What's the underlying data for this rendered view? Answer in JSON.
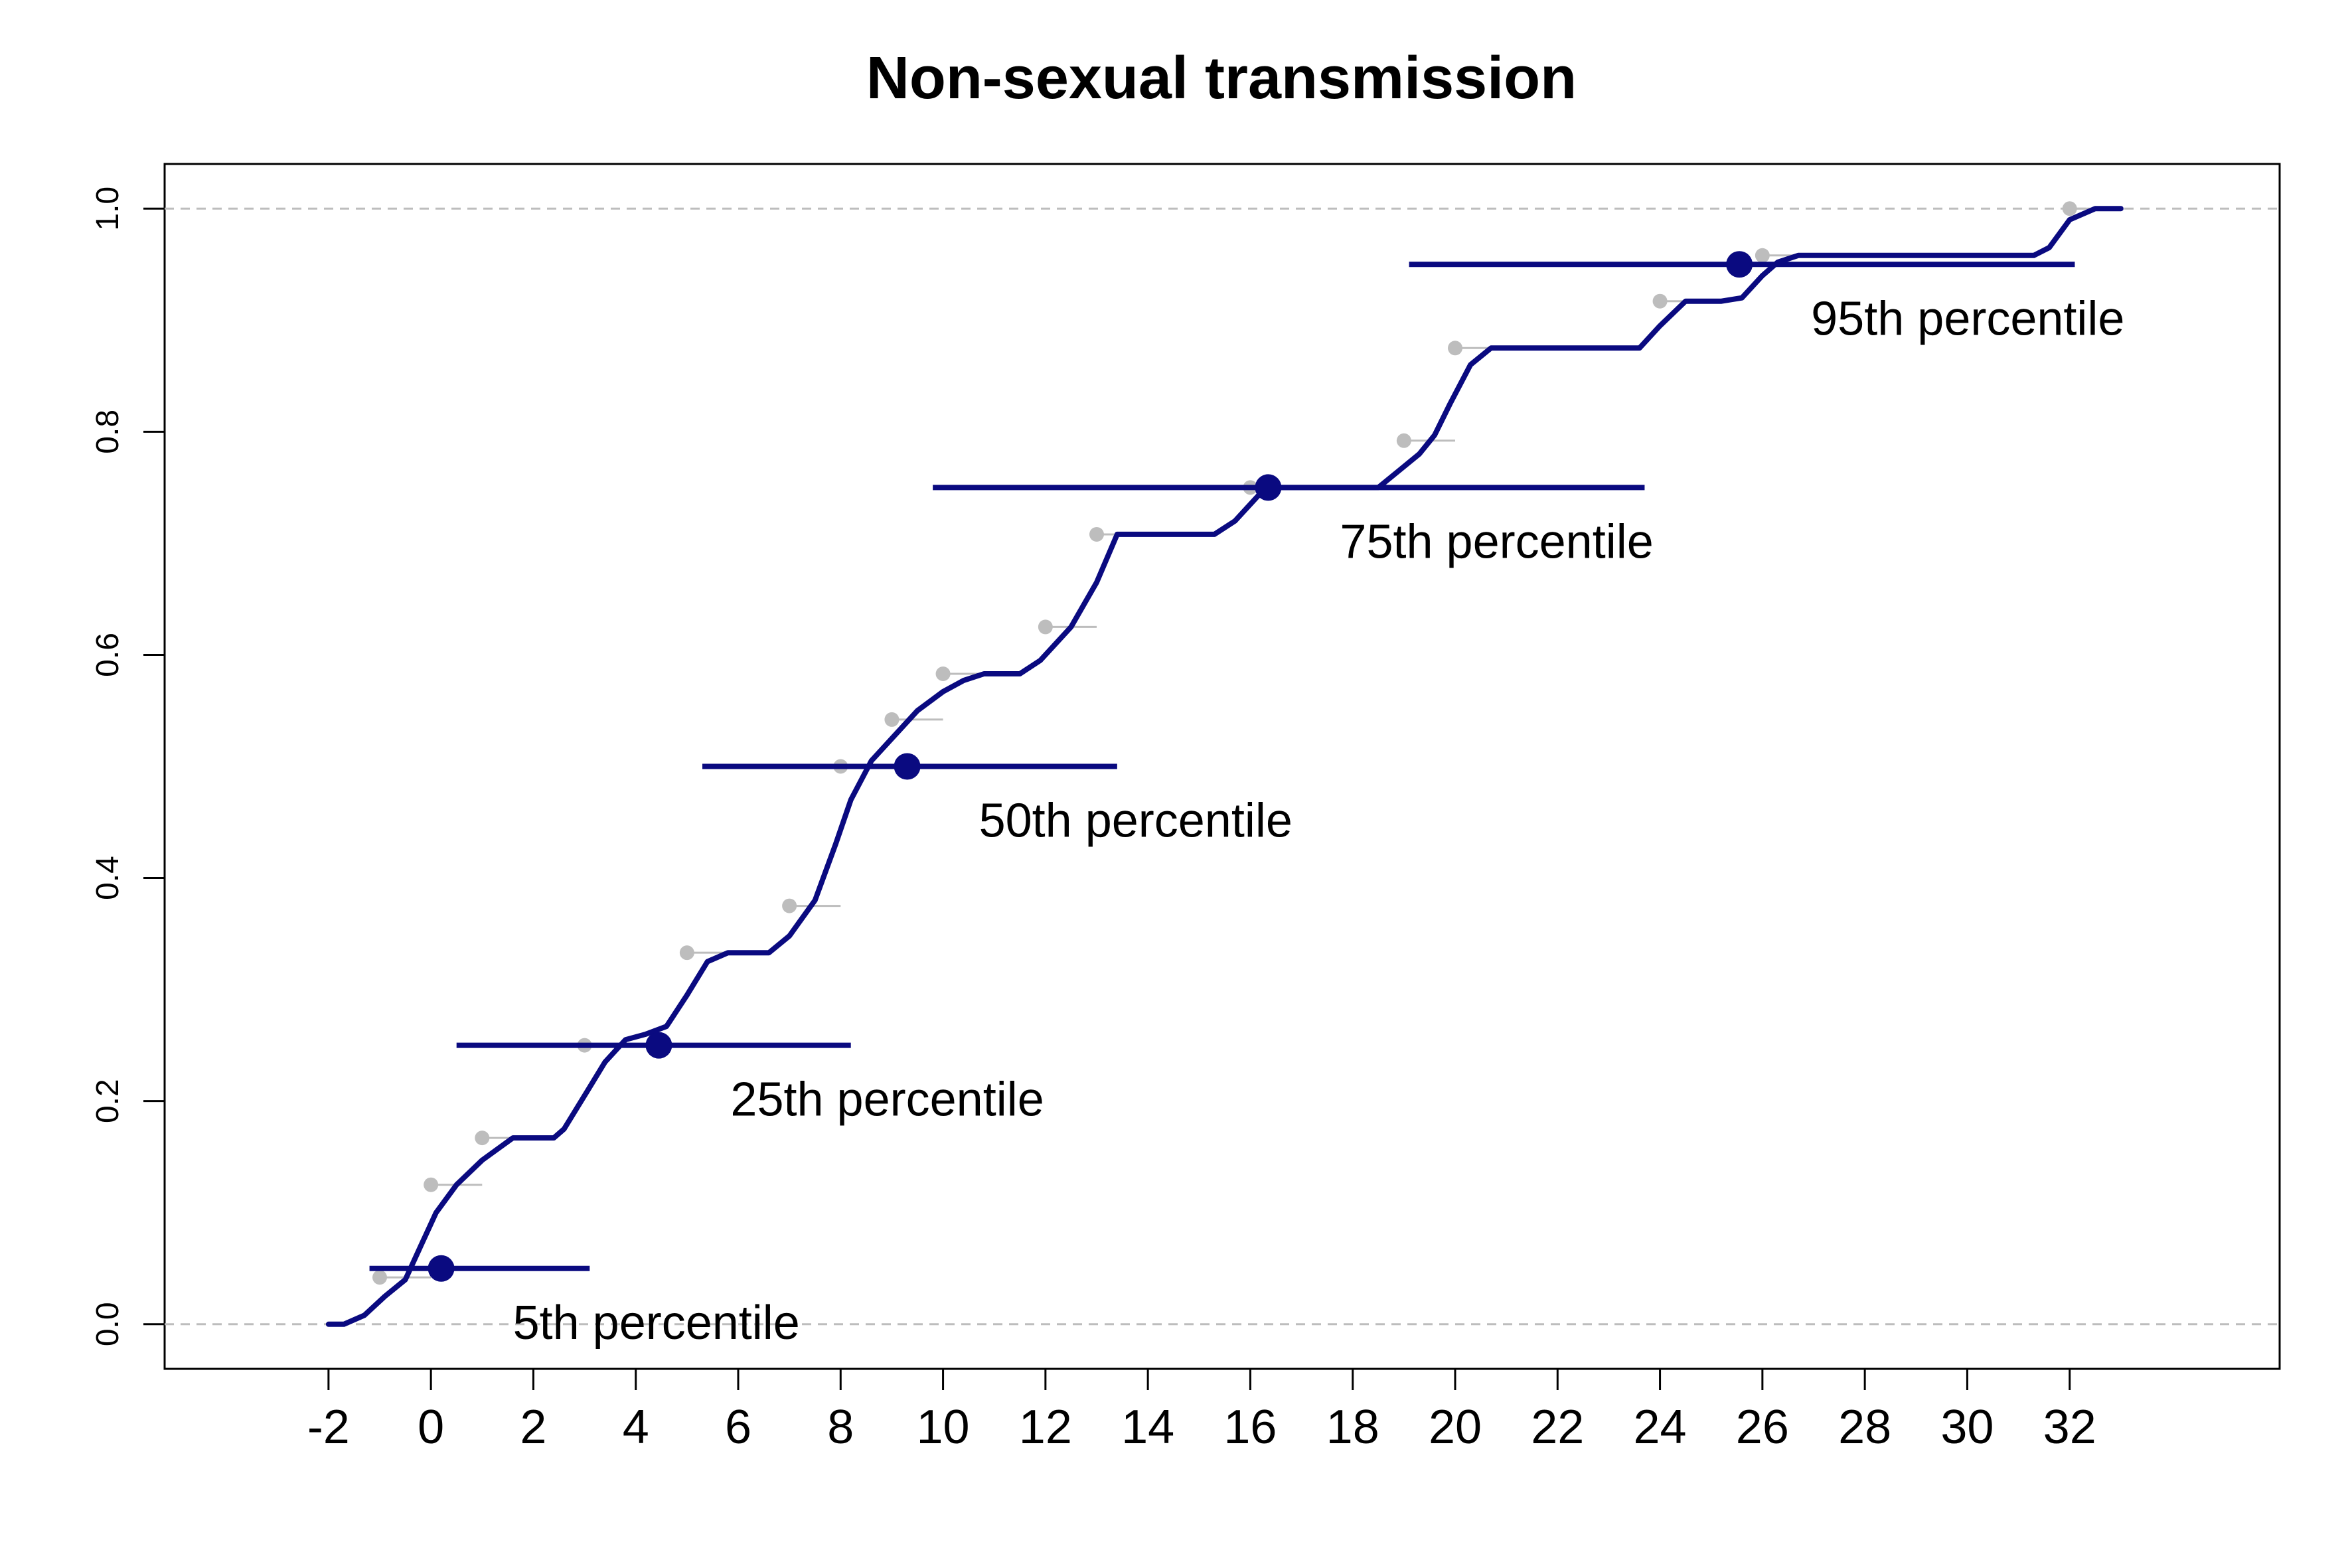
{
  "chart_data": {
    "type": "line",
    "title": "Non-sexual transmission",
    "xlabel": "",
    "ylabel": "",
    "xlim": [
      -5.2,
      36.1
    ],
    "ylim": [
      -0.04,
      1.04
    ],
    "x_ticks": [
      -2,
      0,
      2,
      4,
      6,
      8,
      10,
      12,
      14,
      16,
      18,
      20,
      22,
      24,
      26,
      28,
      30,
      32
    ],
    "x_tick_labels": [
      "-2",
      "0",
      "2",
      "4",
      "6",
      "8",
      "10",
      "12",
      "14",
      "16",
      "18",
      "20",
      "22",
      "24",
      "26",
      "28",
      "30",
      "32"
    ],
    "y_ticks": [
      0.0,
      0.2,
      0.4,
      0.6,
      0.8,
      1.0
    ],
    "y_tick_labels": [
      "0.0",
      "0.2",
      "0.4",
      "0.6",
      "0.8",
      "1.0"
    ],
    "reference_lines_y": [
      0.0,
      1.0
    ],
    "colors": {
      "curve": "#0a0a80",
      "percentile": "#0a0a80",
      "empirical": "#bdbdbd",
      "reference": "#bdbdbd"
    },
    "series": [
      {
        "type": "line",
        "x": [
          -2,
          -1.7,
          -1.3,
          -0.9,
          -0.5,
          -0.2,
          0.1,
          0.5,
          1.0,
          1.6,
          2.4,
          2.6,
          3.0,
          3.4,
          3.8,
          4.2,
          4.6,
          5.0,
          5.4,
          5.8,
          6.0,
          6.6,
          7.0,
          7.5,
          7.9,
          8.2,
          8.6,
          9.0,
          9.5,
          10.0,
          10.4,
          10.8,
          11.5,
          11.9,
          12.5,
          13.0,
          13.4,
          15.3,
          15.7,
          16.2,
          16.5,
          18.5,
          18.9,
          19.3,
          19.6,
          19.9,
          20.3,
          20.7,
          23.6,
          24.0,
          24.5,
          25.2,
          25.6,
          26.0,
          26.3,
          26.7,
          31.3,
          31.6,
          32.0,
          32.5,
          33.0
        ],
        "y": [
          0.0,
          0.0,
          0.008,
          0.025,
          0.04,
          0.07,
          0.1,
          0.125,
          0.147,
          0.167,
          0.167,
          0.175,
          0.205,
          0.235,
          0.255,
          0.26,
          0.267,
          0.295,
          0.325,
          0.333,
          0.333,
          0.333,
          0.348,
          0.38,
          0.43,
          0.47,
          0.505,
          0.525,
          0.55,
          0.567,
          0.577,
          0.583,
          0.583,
          0.595,
          0.625,
          0.665,
          0.708,
          0.708,
          0.72,
          0.745,
          0.75,
          0.75,
          0.765,
          0.78,
          0.797,
          0.825,
          0.86,
          0.875,
          0.875,
          0.895,
          0.917,
          0.917,
          0.92,
          0.94,
          0.952,
          0.958,
          0.958,
          0.965,
          0.99,
          1.0,
          1.0
        ]
      },
      {
        "type": "scatter",
        "x": [
          -1,
          0,
          1,
          3,
          5,
          7,
          8,
          9,
          10,
          12,
          13,
          16,
          19,
          20,
          24,
          26,
          32
        ],
        "y": [
          0.042,
          0.125,
          0.167,
          0.25,
          0.333,
          0.375,
          0.5,
          0.542,
          0.583,
          0.625,
          0.708,
          0.75,
          0.792,
          0.875,
          0.917,
          0.958,
          1.0
        ]
      }
    ],
    "percentiles": [
      {
        "label": "5th percentile",
        "y": 0.05,
        "point": 0.2,
        "low": -1.2,
        "high": 3.1
      },
      {
        "label": "25th percentile",
        "y": 0.25,
        "point": 4.45,
        "low": 0.5,
        "high": 8.2
      },
      {
        "label": "50th percentile",
        "y": 0.5,
        "point": 9.3,
        "low": 5.3,
        "high": 13.4
      },
      {
        "label": "75th percentile",
        "y": 0.75,
        "point": 16.35,
        "low": 9.8,
        "high": 23.7
      },
      {
        "label": "95th percentile",
        "y": 0.95,
        "point": 25.55,
        "low": 19.1,
        "high": 32.1
      }
    ]
  }
}
